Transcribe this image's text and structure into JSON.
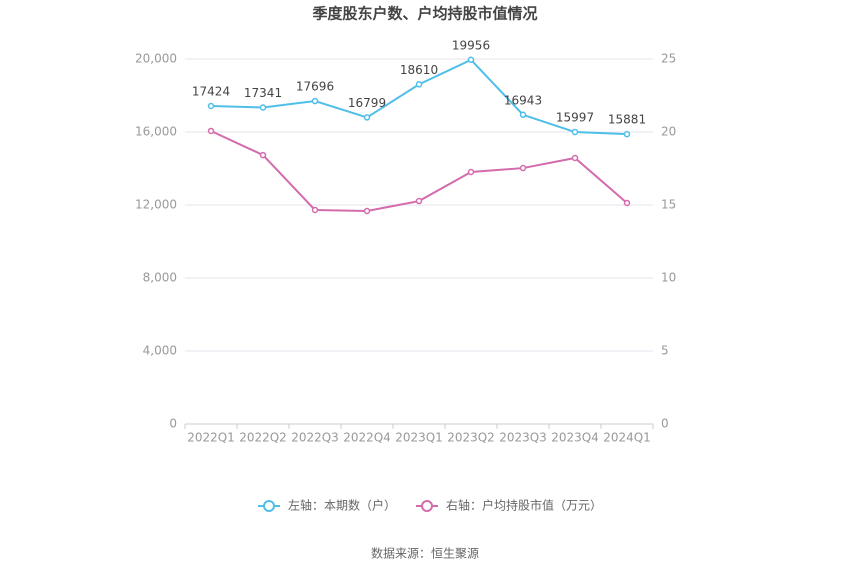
{
  "chart_data": {
    "type": "line",
    "title": "季度股东户数、户均持股市值情况",
    "source": "数据来源：恒生聚源",
    "categories": [
      "2022Q1",
      "2022Q2",
      "2022Q3",
      "2022Q4",
      "2023Q1",
      "2023Q2",
      "2023Q3",
      "2023Q4",
      "2024Q1"
    ],
    "series": [
      {
        "name": "左轴：本期数（户）",
        "color": "#4fbfea",
        "values": [
          17424,
          17341,
          17696,
          16799,
          18610,
          19956,
          16943,
          15997,
          15881
        ],
        "data_labels": true
      },
      {
        "name": "右轴：户均持股市值（万元）",
        "color": "#d36bad",
        "axis": "y2",
        "values": [
          20.07,
          18.42,
          14.66,
          14.59,
          15.27,
          17.26,
          17.53,
          18.22,
          15.14
        ]
      }
    ],
    "ylim": [
      0,
      20000
    ],
    "yticks": [
      0,
      {
        "value": 4000,
        "label": "4,000"
      },
      {
        "value": 8000,
        "label": "8,000"
      },
      {
        "value": 12000,
        "label": "12,000"
      },
      {
        "value": 16000,
        "label": "16,000"
      },
      {
        "value": 20000,
        "label": "20,000"
      }
    ],
    "y2lim": [
      0,
      25
    ],
    "y2ticks": [
      0,
      5,
      10,
      15,
      20,
      25
    ],
    "grid": true
  }
}
